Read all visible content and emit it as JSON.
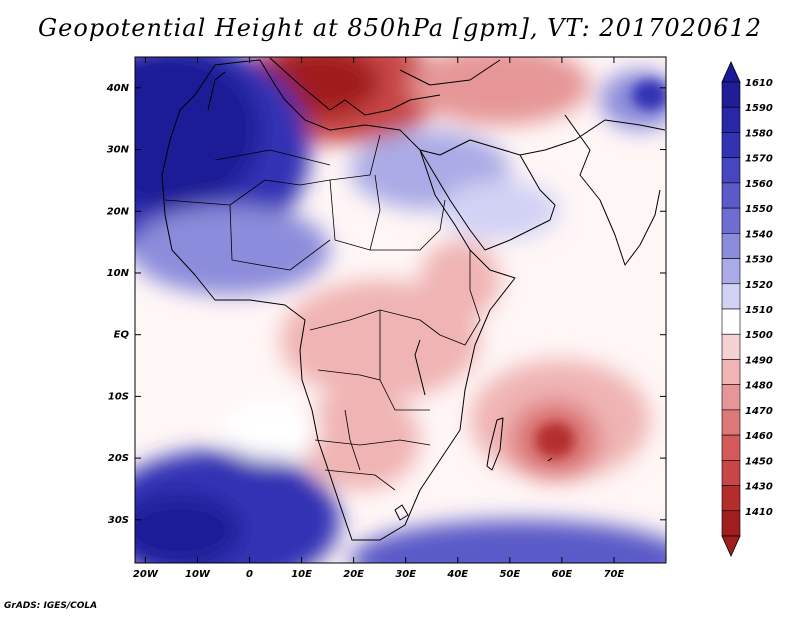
{
  "title": "Geopotential Height at 850hPa [gpm], VT: 2017020612",
  "credit": "GrADS: IGES/COLA",
  "map": {
    "projection": "lat-lon",
    "lon_range": [
      -22,
      80
    ],
    "lat_range": [
      -37,
      45
    ],
    "lat_ticks": [
      {
        "value": 40,
        "label": "40N"
      },
      {
        "value": 30,
        "label": "30N"
      },
      {
        "value": 20,
        "label": "20N"
      },
      {
        "value": 10,
        "label": "10N"
      },
      {
        "value": 0,
        "label": "EQ"
      },
      {
        "value": -10,
        "label": "10S"
      },
      {
        "value": -20,
        "label": "20S"
      },
      {
        "value": -30,
        "label": "30S"
      }
    ],
    "lon_ticks": [
      {
        "value": -20,
        "label": "20W"
      },
      {
        "value": -10,
        "label": "10W"
      },
      {
        "value": 0,
        "label": "0"
      },
      {
        "value": 10,
        "label": "10E"
      },
      {
        "value": 20,
        "label": "20E"
      },
      {
        "value": 30,
        "label": "30E"
      },
      {
        "value": 40,
        "label": "40E"
      },
      {
        "value": 50,
        "label": "50E"
      },
      {
        "value": 60,
        "label": "60E"
      },
      {
        "value": 70,
        "label": "70E"
      }
    ]
  },
  "colorbar": {
    "levels": [
      {
        "label": "1610",
        "color": "#1e1e96"
      },
      {
        "label": "1590",
        "color": "#2828a6"
      },
      {
        "label": "1580",
        "color": "#3232b4"
      },
      {
        "label": "1570",
        "color": "#4646c0"
      },
      {
        "label": "1560",
        "color": "#5a5ac8"
      },
      {
        "label": "1550",
        "color": "#6e6ed2"
      },
      {
        "label": "1540",
        "color": "#8c8cdc"
      },
      {
        "label": "1530",
        "color": "#aaaae6"
      },
      {
        "label": "1520",
        "color": "#d2d2f5"
      },
      {
        "label": "1510",
        "color": "#ffffff"
      },
      {
        "label": "1500",
        "color": "#f5d2d2"
      },
      {
        "label": "1490",
        "color": "#f0b4b4"
      },
      {
        "label": "1480",
        "color": "#e69696"
      },
      {
        "label": "1470",
        "color": "#dc7878"
      },
      {
        "label": "1460",
        "color": "#d25a5a"
      },
      {
        "label": "1450",
        "color": "#c84646"
      },
      {
        "label": "1430",
        "color": "#b42d2d"
      },
      {
        "label": "1410",
        "color": "#a01e1e"
      }
    ],
    "top_arrow_color": "#19199a",
    "bottom_arrow_color": "#a01e1e"
  }
}
